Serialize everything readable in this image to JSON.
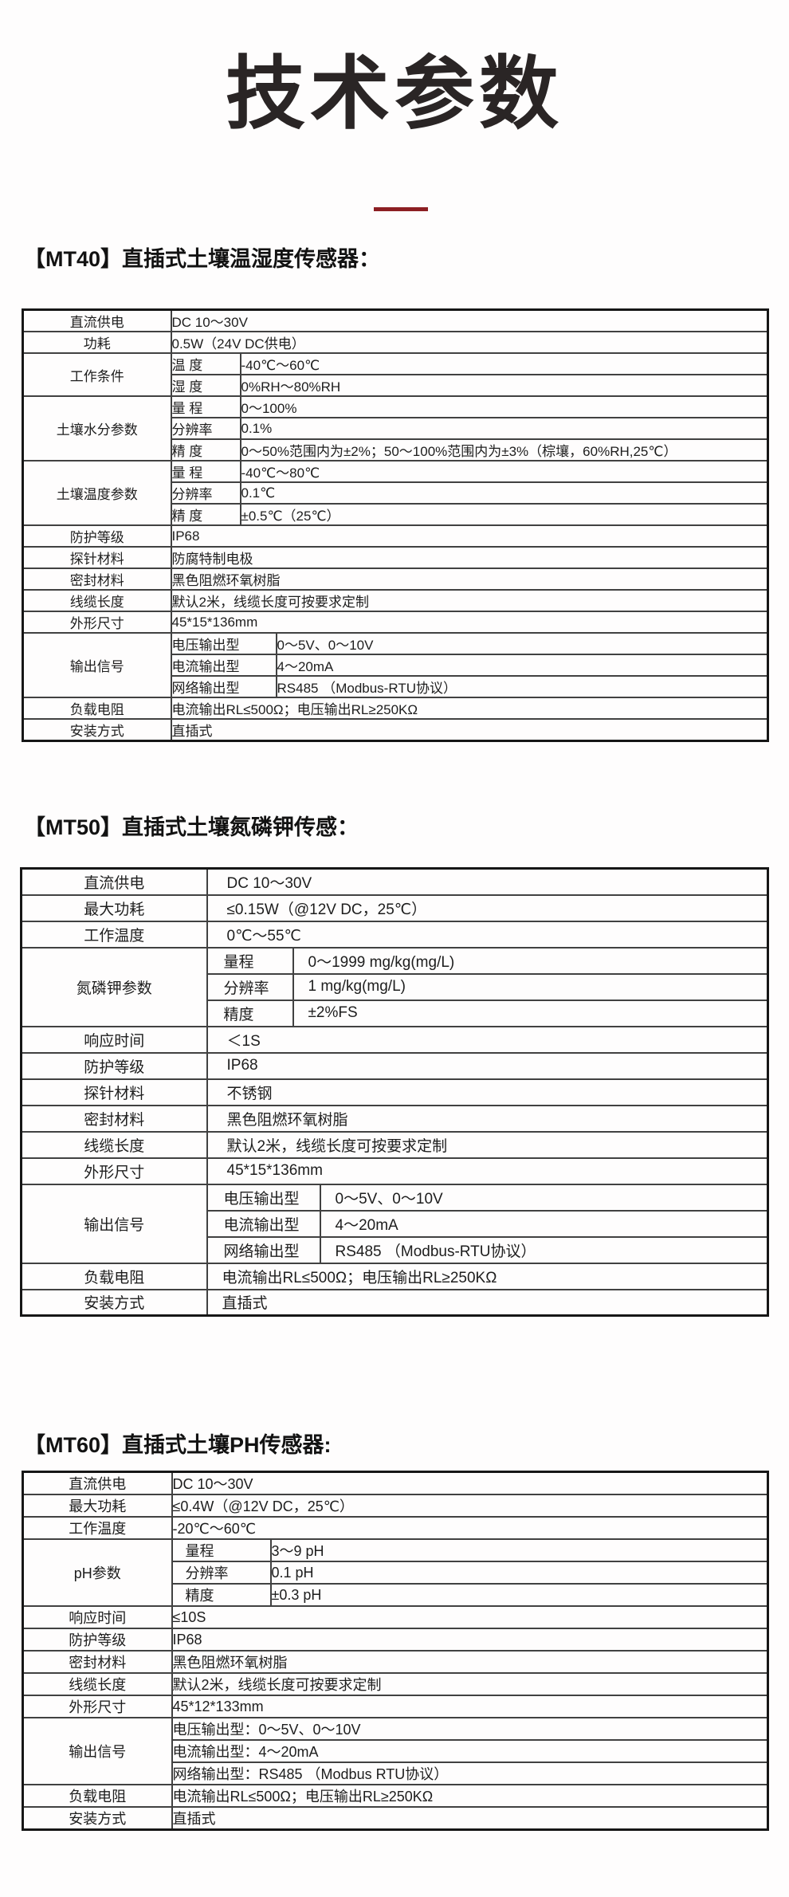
{
  "page": {
    "title": "技术参数"
  },
  "accent": {
    "line_color": "#8c1f23"
  },
  "tables": [
    {
      "id": "mt40",
      "heading": "【MT40】直插式土壤温湿度传感器：",
      "rows": [
        {
          "cells": [
            {
              "t": "直流供电",
              "k": "lab"
            },
            {
              "t": "DC 10～30V",
              "k": "val",
              "cs": 3
            }
          ]
        },
        {
          "cells": [
            {
              "t": "功耗",
              "k": "lab"
            },
            {
              "t": "0.5W（24V DC供电）",
              "k": "val",
              "cs": 3
            }
          ]
        },
        {
          "cells": [
            {
              "t": "工作条件",
              "k": "lab",
              "rs": 2,
              "va": "top"
            },
            {
              "t": "温 度",
              "k": "sub"
            },
            {
              "t": "-40℃～60℃",
              "k": "val",
              "cs": 2
            }
          ]
        },
        {
          "cells": [
            {
              "t": "湿 度",
              "k": "sub"
            },
            {
              "t": "0%RH～80%RH",
              "k": "val",
              "cs": 2
            }
          ]
        },
        {
          "cells": [
            {
              "t": "土壤水分参数",
              "k": "lab",
              "rs": 3
            },
            {
              "t": "量 程",
              "k": "sub"
            },
            {
              "t": "0～100%",
              "k": "val",
              "cs": 2
            }
          ]
        },
        {
          "cells": [
            {
              "t": "分辨率",
              "k": "sub"
            },
            {
              "t": "0.1%",
              "k": "val",
              "cs": 2
            }
          ]
        },
        {
          "cells": [
            {
              "t": "精 度",
              "k": "sub"
            },
            {
              "t": "0～50%范围内为±2%；50～100%范围内为±3%（棕壤，60%RH,25℃）",
              "k": "val",
              "cs": 2
            }
          ]
        },
        {
          "cells": [
            {
              "t": "土壤温度参数",
              "k": "lab",
              "rs": 3
            },
            {
              "t": "量 程",
              "k": "sub"
            },
            {
              "t": "-40℃～80℃",
              "k": "val",
              "cs": 2
            }
          ]
        },
        {
          "cells": [
            {
              "t": "分辨率",
              "k": "sub"
            },
            {
              "t": "0.1℃",
              "k": "val",
              "cs": 2
            }
          ]
        },
        {
          "cells": [
            {
              "t": "精 度",
              "k": "sub"
            },
            {
              "t": "±0.5℃（25℃）",
              "k": "val",
              "cs": 2
            }
          ]
        },
        {
          "cells": [
            {
              "t": "防护等级",
              "k": "lab"
            },
            {
              "t": "IP68",
              "k": "val",
              "cs": 3
            }
          ]
        },
        {
          "cells": [
            {
              "t": "探针材料",
              "k": "lab"
            },
            {
              "t": "防腐特制电极",
              "k": "val",
              "cs": 3
            }
          ]
        },
        {
          "cells": [
            {
              "t": "密封材料",
              "k": "lab"
            },
            {
              "t": "黑色阻燃环氧树脂",
              "k": "val",
              "cs": 3
            }
          ]
        },
        {
          "cells": [
            {
              "t": "线缆长度",
              "k": "lab"
            },
            {
              "t": "默认2米，线缆长度可按要求定制",
              "k": "val",
              "cs": 3
            }
          ]
        },
        {
          "cells": [
            {
              "t": "外形尺寸",
              "k": "lab"
            },
            {
              "t": "45*15*136mm",
              "k": "val",
              "cs": 3
            }
          ]
        },
        {
          "cells": [
            {
              "t": "输出信号",
              "k": "lab",
              "rs": 3
            },
            {
              "t": "电压输出型",
              "k": "sub",
              "cs": 2
            },
            {
              "t": "0～5V、0～10V",
              "k": "val"
            }
          ]
        },
        {
          "cells": [
            {
              "t": "电流输出型",
              "k": "sub",
              "cs": 2
            },
            {
              "t": "4～20mA",
              "k": "val"
            }
          ]
        },
        {
          "cells": [
            {
              "t": "网络输出型",
              "k": "sub",
              "cs": 2
            },
            {
              "t": "RS485 （Modbus-RTU协议）",
              "k": "val"
            }
          ]
        },
        {
          "cells": [
            {
              "t": "负载电阻",
              "k": "lab"
            },
            {
              "t": "电流输出RL≤500Ω；电压输出RL≥250KΩ",
              "k": "val",
              "cs": 3
            }
          ]
        },
        {
          "cells": [
            {
              "t": "安装方式",
              "k": "lab"
            },
            {
              "t": "直插式",
              "k": "val",
              "cs": 3
            }
          ]
        }
      ]
    },
    {
      "id": "mt50",
      "heading": "【MT50】直插式土壤氮磷钾传感：",
      "rows": [
        {
          "cells": [
            {
              "t": "直流供电",
              "k": "lab"
            },
            {
              "t": "DC 10～30V",
              "k": "val",
              "cs": 3,
              "pl": 24
            }
          ]
        },
        {
          "cells": [
            {
              "t": "最大功耗",
              "k": "lab"
            },
            {
              "t": "≤0.15W（@12V DC，25℃）",
              "k": "val",
              "cs": 3,
              "pl": 24
            }
          ]
        },
        {
          "cells": [
            {
              "t": "工作温度",
              "k": "lab"
            },
            {
              "t": "0℃～55℃",
              "k": "val",
              "cs": 3,
              "pl": 24
            }
          ]
        },
        {
          "cells": [
            {
              "t": "氮磷钾参数",
              "k": "lab",
              "rs": 3
            },
            {
              "t": "量程",
              "k": "sub"
            },
            {
              "t": "0～1999 mg/kg(mg/L)",
              "k": "val",
              "cs": 2,
              "pl": 18
            }
          ]
        },
        {
          "cells": [
            {
              "t": "分辨率",
              "k": "sub"
            },
            {
              "t": "1 mg/kg(mg/L)",
              "k": "val",
              "cs": 2,
              "pl": 18
            }
          ]
        },
        {
          "cells": [
            {
              "t": "精度",
              "k": "sub"
            },
            {
              "t": "±2%FS",
              "k": "val",
              "cs": 2,
              "pl": 18
            }
          ]
        },
        {
          "cells": [
            {
              "t": "响应时间",
              "k": "lab"
            },
            {
              "t": "＜1S",
              "k": "val",
              "cs": 3,
              "pl": 24
            }
          ]
        },
        {
          "cells": [
            {
              "t": "防护等级",
              "k": "lab"
            },
            {
              "t": "IP68",
              "k": "val",
              "cs": 3,
              "pl": 24
            }
          ]
        },
        {
          "cells": [
            {
              "t": "探针材料",
              "k": "lab"
            },
            {
              "t": "不锈钢",
              "k": "val",
              "cs": 3,
              "pl": 24
            }
          ]
        },
        {
          "cells": [
            {
              "t": "密封材料",
              "k": "lab"
            },
            {
              "t": "黑色阻燃环氧树脂",
              "k": "val",
              "cs": 3,
              "pl": 24
            }
          ]
        },
        {
          "cells": [
            {
              "t": "线缆长度",
              "k": "lab"
            },
            {
              "t": "默认2米，线缆长度可按要求定制",
              "k": "val",
              "cs": 3,
              "pl": 24
            }
          ]
        },
        {
          "cells": [
            {
              "t": "外形尺寸",
              "k": "lab"
            },
            {
              "t": "45*15*136mm",
              "k": "val",
              "cs": 3,
              "pl": 24
            }
          ]
        },
        {
          "cells": [
            {
              "t": "输出信号",
              "k": "lab",
              "rs": 3
            },
            {
              "t": "电压输出型",
              "k": "sub",
              "cs": 2
            },
            {
              "t": "0～5V、0～10V",
              "k": "val",
              "pl": 18
            }
          ]
        },
        {
          "cells": [
            {
              "t": "电流输出型",
              "k": "sub",
              "cs": 2
            },
            {
              "t": "4～20mA",
              "k": "val",
              "pl": 18
            }
          ]
        },
        {
          "cells": [
            {
              "t": "网络输出型",
              "k": "sub",
              "cs": 2
            },
            {
              "t": "RS485 （Modbus-RTU协议）",
              "k": "val",
              "pl": 18
            }
          ]
        },
        {
          "cells": [
            {
              "t": "负载电阻",
              "k": "lab"
            },
            {
              "t": "电流输出RL≤500Ω；电压输出RL≥250KΩ",
              "k": "val",
              "cs": 3,
              "pl": 18
            }
          ]
        },
        {
          "cells": [
            {
              "t": "安装方式",
              "k": "lab"
            },
            {
              "t": "直插式",
              "k": "val",
              "cs": 3,
              "pl": 18
            }
          ]
        }
      ]
    },
    {
      "id": "mt60",
      "heading": "【MT60】直插式土壤PH传感器:",
      "rows": [
        {
          "cells": [
            {
              "t": "直流供电",
              "k": "lab"
            },
            {
              "t": "DC 10～30V",
              "k": "val",
              "cs": 2
            }
          ]
        },
        {
          "cells": [
            {
              "t": "最大功耗",
              "k": "lab"
            },
            {
              "t": "≤0.4W（@12V DC，25℃）",
              "k": "val",
              "cs": 2
            }
          ]
        },
        {
          "cells": [
            {
              "t": "工作温度",
              "k": "lab"
            },
            {
              "t": "-20℃～60℃",
              "k": "val",
              "cs": 2
            }
          ]
        },
        {
          "cells": [
            {
              "t": "pH参数",
              "k": "lab",
              "rs": 3
            },
            {
              "t": "量程",
              "k": "sub"
            },
            {
              "t": "3～9 pH",
              "k": "val"
            }
          ]
        },
        {
          "cells": [
            {
              "t": "分辨率",
              "k": "sub"
            },
            {
              "t": "0.1 pH",
              "k": "val"
            }
          ]
        },
        {
          "cells": [
            {
              "t": "精度",
              "k": "sub"
            },
            {
              "t": "±0.3 pH",
              "k": "val"
            }
          ]
        },
        {
          "cells": [
            {
              "t": "响应时间",
              "k": "lab"
            },
            {
              "t": "≤10S",
              "k": "val",
              "cs": 2
            }
          ]
        },
        {
          "cells": [
            {
              "t": "防护等级",
              "k": "lab"
            },
            {
              "t": "IP68",
              "k": "val",
              "cs": 2
            }
          ]
        },
        {
          "cells": [
            {
              "t": "密封材料",
              "k": "lab"
            },
            {
              "t": "黑色阻燃环氧树脂",
              "k": "val",
              "cs": 2
            }
          ]
        },
        {
          "cells": [
            {
              "t": "线缆长度",
              "k": "lab"
            },
            {
              "t": "默认2米，线缆长度可按要求定制",
              "k": "val",
              "cs": 2
            }
          ]
        },
        {
          "cells": [
            {
              "t": "外形尺寸",
              "k": "lab"
            },
            {
              "t": "45*12*133mm",
              "k": "val",
              "cs": 2
            }
          ]
        },
        {
          "cells": [
            {
              "t": "输出信号",
              "k": "lab",
              "rs": 3
            },
            {
              "t": "电压输出型：0～5V、0～10V",
              "k": "val",
              "cs": 2
            }
          ]
        },
        {
          "cells": [
            {
              "t": "电流输出型：4～20mA",
              "k": "val",
              "cs": 2
            }
          ]
        },
        {
          "cells": [
            {
              "t": "网络输出型：RS485 （Modbus RTU协议）",
              "k": "val",
              "cs": 2
            }
          ]
        },
        {
          "cells": [
            {
              "t": "负载电阻",
              "k": "lab"
            },
            {
              "t": "电流输出RL≤500Ω；电压输出RL≥250KΩ",
              "k": "val",
              "cs": 2
            }
          ]
        },
        {
          "cells": [
            {
              "t": "安装方式",
              "k": "lab"
            },
            {
              "t": "直插式",
              "k": "val",
              "cs": 2
            }
          ]
        }
      ]
    }
  ]
}
